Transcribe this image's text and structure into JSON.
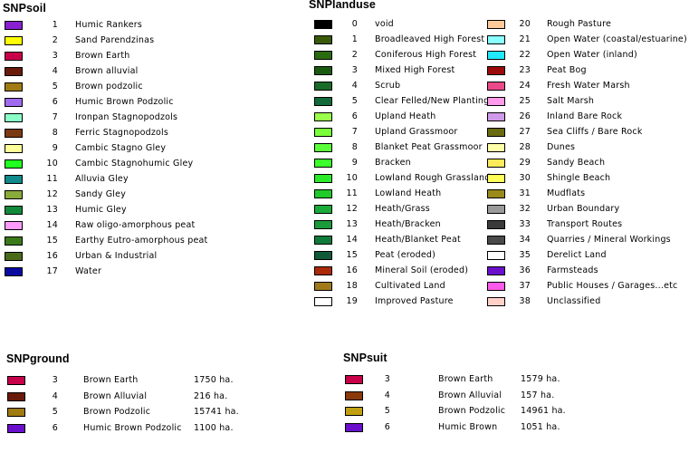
{
  "snpsoil": {
    "title": "SNPsoil",
    "items": [
      {
        "code": "1",
        "label": "Humic Rankers",
        "color": "#8a1fd0"
      },
      {
        "code": "2",
        "label": "Sand Parendzinas",
        "color": "#ffff00"
      },
      {
        "code": "3",
        "label": "Brown Earth",
        "color": "#c8004a"
      },
      {
        "code": "4",
        "label": "Brown alluvial",
        "color": "#6a1a0a"
      },
      {
        "code": "5",
        "label": "Brown podzolic",
        "color": "#a07a12"
      },
      {
        "code": "6",
        "label": "Humic Brown Podzolic",
        "color": "#a06aee"
      },
      {
        "code": "7",
        "label": "Ironpan Stagnopodzols",
        "color": "#8affc8"
      },
      {
        "code": "8",
        "label": "Ferric Stagnopodzols",
        "color": "#7a3a12"
      },
      {
        "code": "9",
        "label": "Cambic Stagno Gley",
        "color": "#ffff9a"
      },
      {
        "code": "10",
        "label": "Cambic Stagnohumic Gley",
        "color": "#20ff20"
      },
      {
        "code": "11",
        "label": "Alluvia Gley",
        "color": "#108a8a"
      },
      {
        "code": "12",
        "label": "Sandy Gley",
        "color": "#8aaa3a"
      },
      {
        "code": "13",
        "label": "Humic Gley",
        "color": "#108a3a"
      },
      {
        "code": "14",
        "label": "Raw oligo-amorphous peat",
        "color": "#ff9aff"
      },
      {
        "code": "15",
        "label": "Earthy Eutro-amorphous peat",
        "color": "#3a7a1a"
      },
      {
        "code": "16",
        "label": "Urban & Industrial",
        "color": "#4a6a1a"
      },
      {
        "code": "17",
        "label": "Water",
        "color": "#0a0aa0"
      }
    ]
  },
  "snplanduse": {
    "title": "SNPlanduse",
    "left": [
      {
        "code": "0",
        "label": "void",
        "color": "#000000"
      },
      {
        "code": "1",
        "label": "Broadleaved High Forest",
        "color": "#3a5a0a"
      },
      {
        "code": "2",
        "label": "Coniferous High Forest",
        "color": "#2a6a10"
      },
      {
        "code": "3",
        "label": "Mixed High Forest",
        "color": "#1a5a10"
      },
      {
        "code": "4",
        "label": "Scrub",
        "color": "#1a6a2a"
      },
      {
        "code": "5",
        "label": "Clear Felled/New Planting",
        "color": "#106a3a"
      },
      {
        "code": "6",
        "label": "Upland Heath",
        "color": "#9aff4a"
      },
      {
        "code": "7",
        "label": "Upland Grassmoor",
        "color": "#7aff3a"
      },
      {
        "code": "8",
        "label": "Blanket Peat Grassmoor",
        "color": "#5aff3a"
      },
      {
        "code": "9",
        "label": "Bracken",
        "color": "#3aff2a"
      },
      {
        "code": "10",
        "label": "Lowland Rough Grassland",
        "color": "#2aea2a"
      },
      {
        "code": "11",
        "label": "Lowland Heath",
        "color": "#20ca2a"
      },
      {
        "code": "12",
        "label": "Heath/Grass",
        "color": "#1aaa3a"
      },
      {
        "code": "13",
        "label": "Heath/Bracken",
        "color": "#1a9a3a"
      },
      {
        "code": "14",
        "label": "Heath/Blanket Peat",
        "color": "#107a3a"
      },
      {
        "code": "15",
        "label": "Peat (eroded)",
        "color": "#105a3a"
      },
      {
        "code": "16",
        "label": "Mineral Soil (eroded)",
        "color": "#aa2a0a"
      },
      {
        "code": "18",
        "label": "Cultivated Land",
        "color": "#a07a1a"
      },
      {
        "code": "19",
        "label": "Improved Pasture",
        "color": "#ffffff"
      }
    ],
    "right": [
      {
        "code": "20",
        "label": "Rough Pasture",
        "color": "#ffca9a"
      },
      {
        "code": "21",
        "label": "Open Water (coastal/estuarine)",
        "color": "#8affff"
      },
      {
        "code": "22",
        "label": "Open Water (inland)",
        "color": "#20eaff"
      },
      {
        "code": "23",
        "label": "Peat Bog",
        "color": "#9a0a0a"
      },
      {
        "code": "24",
        "label": "Fresh Water Marsh",
        "color": "#ea4a8a"
      },
      {
        "code": "25",
        "label": "Salt Marsh",
        "color": "#ff9aea"
      },
      {
        "code": "26",
        "label": "Inland Bare Rock",
        "color": "#d09aea"
      },
      {
        "code": "27",
        "label": "Sea Cliffs / Bare Rock",
        "color": "#6a6a10"
      },
      {
        "code": "28",
        "label": "Dunes",
        "color": "#ffffaa"
      },
      {
        "code": "29",
        "label": "Sandy Beach",
        "color": "#ffea5a"
      },
      {
        "code": "30",
        "label": "Shingle Beach",
        "color": "#ffff5a"
      },
      {
        "code": "31",
        "label": "Mudflats",
        "color": "#9a8a1a"
      },
      {
        "code": "32",
        "label": "Urban Boundary",
        "color": "#9a9a9a"
      },
      {
        "code": "33",
        "label": "Transport Routes",
        "color": "#3a3a3a"
      },
      {
        "code": "34",
        "label": "Quarries / Mineral Workings",
        "color": "#4a4a4a"
      },
      {
        "code": "35",
        "label": "Derelict Land",
        "color": "#ffffff"
      },
      {
        "code": "36",
        "label": "Farmsteads",
        "color": "#6a10ca"
      },
      {
        "code": "37",
        "label": "Public Houses / Garages...etc",
        "color": "#ff5aea"
      },
      {
        "code": "38",
        "label": "Unclassified",
        "color": "#ffd0c8"
      }
    ]
  },
  "snpground": {
    "title": "SNPground",
    "items": [
      {
        "code": "3",
        "label": "Brown Earth",
        "area": "1750 ha.",
        "color": "#c8004a"
      },
      {
        "code": "4",
        "label": "Brown Alluvial",
        "area": "216 ha.",
        "color": "#6a1a0a"
      },
      {
        "code": "5",
        "label": "Brown Podzolic",
        "area": "15741 ha.",
        "color": "#a07a12"
      },
      {
        "code": "6",
        "label": "Humic Brown Podzolic",
        "area": "1100 ha.",
        "color": "#6a10ca"
      }
    ]
  },
  "snpsuit": {
    "title": "SNPsuit",
    "items": [
      {
        "code": "3",
        "label": "Brown Earth",
        "area": "1579 ha.",
        "color": "#c8004a"
      },
      {
        "code": "4",
        "label": "Brown Alluvial",
        "area": "157 ha.",
        "color": "#8a3a0a"
      },
      {
        "code": "5",
        "label": "Brown Podzolic",
        "area": "14961 ha.",
        "color": "#c0a010"
      },
      {
        "code": "6",
        "label": "Humic Brown",
        "area": "1051 ha.",
        "color": "#6a10ca"
      }
    ]
  }
}
